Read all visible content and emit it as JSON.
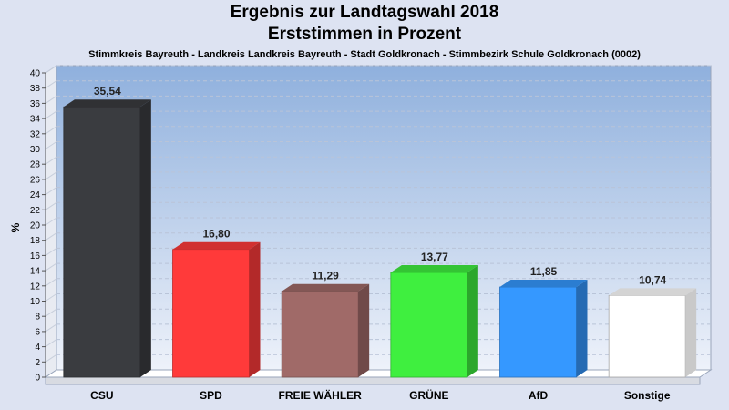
{
  "chart_data": {
    "type": "bar",
    "title": "Ergebnis zur Landtagswahl 2018",
    "subtitle": "Erststimmen in Prozent",
    "caption": "Stimmkreis Bayreuth - Landkreis Landkreis Bayreuth - Stadt Goldkronach - Stimmbezirk Schule Goldkronach (0002)",
    "ylabel": "%",
    "ylim": [
      0,
      40
    ],
    "ytick_step": 2,
    "categories": [
      "CSU",
      "SPD",
      "FREIE WÄHLER",
      "GRÜNE",
      "AfD",
      "Sonstige"
    ],
    "values": [
      35.54,
      16.8,
      11.29,
      13.77,
      11.85,
      10.74
    ],
    "value_labels": [
      "35,54",
      "16,80",
      "11,29",
      "13,77",
      "11,85",
      "10,74"
    ],
    "colors": [
      "#3a3c40",
      "#ff3a3a",
      "#a06a68",
      "#3fef3f",
      "#3598ff",
      "#ffffff"
    ],
    "grid": true
  }
}
